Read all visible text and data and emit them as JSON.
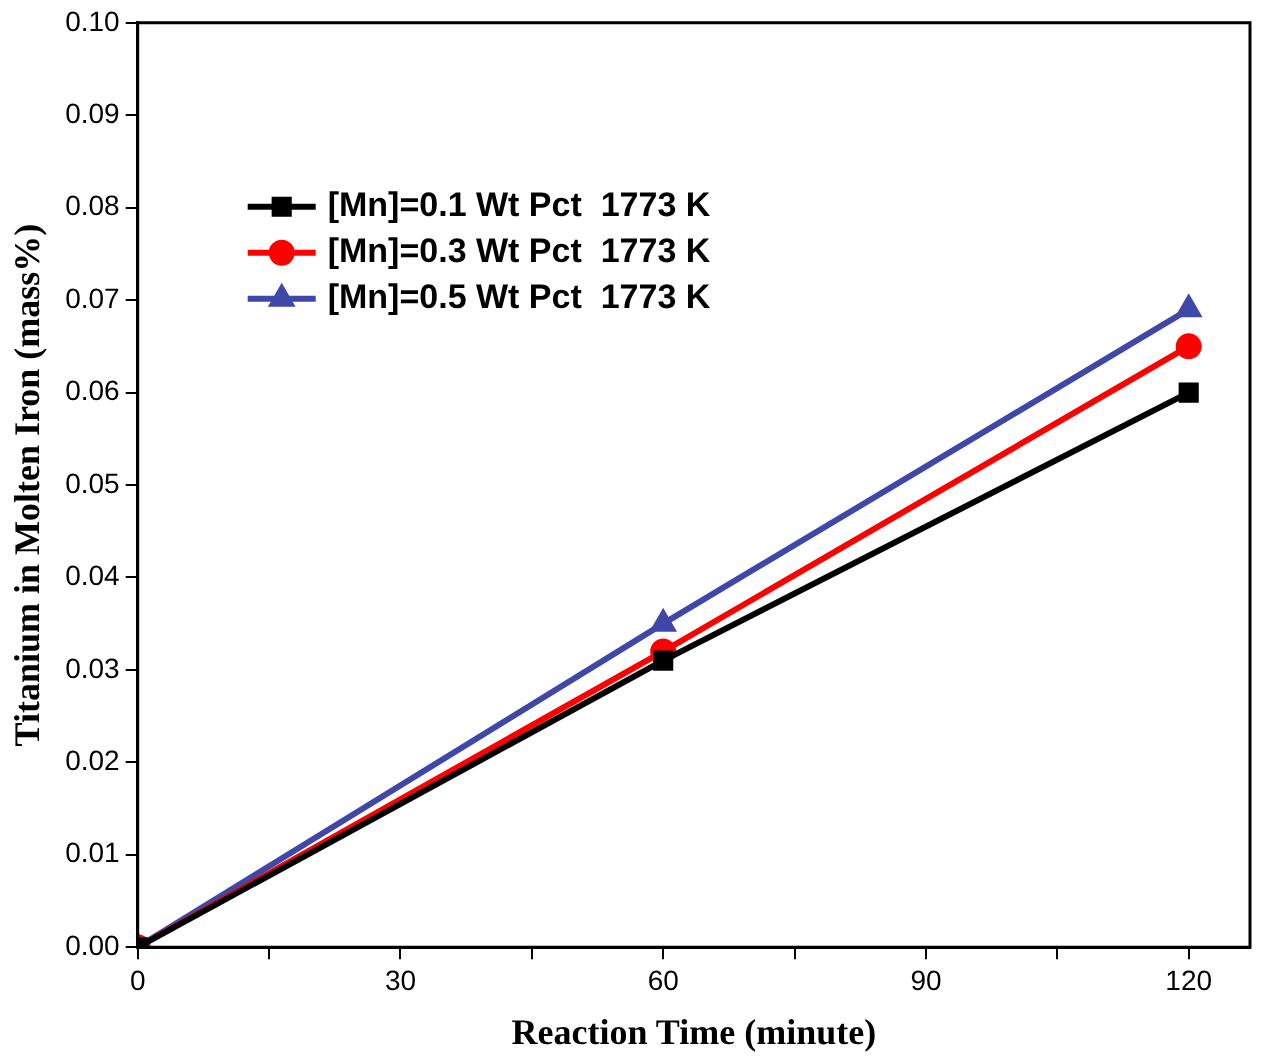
{
  "chart_data": {
    "type": "line",
    "xlabel": "Reaction Time (minute)",
    "ylabel": "Titanium in Molten Iron (mass%)",
    "x": [
      0,
      60,
      120
    ],
    "series": [
      {
        "name": "[Mn]=0.1 Wt Pct  1773 K",
        "color": "#000000",
        "marker": "square",
        "values": [
          0,
          0.031,
          0.06
        ]
      },
      {
        "name": "[Mn]=0.3 Wt Pct  1773 K",
        "color": "#ff0000",
        "marker": "circle",
        "values": [
          0,
          0.032,
          0.065
        ]
      },
      {
        "name": "[Mn]=0.5 Wt Pct  1773 K",
        "color": "#3f48a8",
        "marker": "triangle",
        "values": [
          0,
          0.035,
          0.069
        ]
      }
    ],
    "xlim": [
      0,
      127
    ],
    "xticks": [
      0,
      {
        "value": 15,
        "label": null
      },
      30,
      {
        "value": 45,
        "label": null
      },
      60,
      {
        "value": 75,
        "label": null
      },
      90,
      {
        "value": 105,
        "label": null
      },
      120
    ],
    "ylim": [
      0,
      0.1
    ],
    "yticks": [
      {
        "value": 0,
        "label": "0.00"
      },
      {
        "value": 0.01,
        "label": "0.01"
      },
      {
        "value": 0.02,
        "label": "0.02"
      },
      {
        "value": 0.03,
        "label": "0.03"
      },
      {
        "value": 0.04,
        "label": "0.04"
      },
      {
        "value": 0.05,
        "label": "0.05"
      },
      {
        "value": 0.06,
        "label": "0.06"
      },
      {
        "value": 0.07,
        "label": "0.07"
      },
      {
        "value": 0.08,
        "label": "0.08"
      },
      {
        "value": 0.09,
        "label": "0.09"
      },
      {
        "value": 0.1,
        "label": "0.10"
      }
    ],
    "grid": false,
    "legend": "top left",
    "line_style": "solid"
  }
}
